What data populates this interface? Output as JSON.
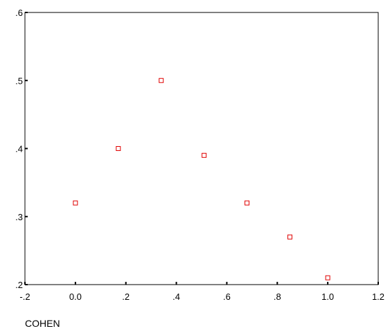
{
  "chart_data": {
    "type": "scatter",
    "title": "",
    "xlabel": "COHEN",
    "ylabel": "",
    "xlim": [
      -0.2,
      1.2
    ],
    "ylim": [
      0.2,
      0.6
    ],
    "x_ticks": [
      {
        "value": -0.2,
        "label": "-.2"
      },
      {
        "value": 0.0,
        "label": "0.0"
      },
      {
        "value": 0.2,
        "label": ".2"
      },
      {
        "value": 0.4,
        "label": ".4"
      },
      {
        "value": 0.6,
        "label": ".6"
      },
      {
        "value": 0.8,
        "label": ".8"
      },
      {
        "value": 1.0,
        "label": "1.0"
      },
      {
        "value": 1.2,
        "label": "1.2"
      }
    ],
    "y_ticks": [
      {
        "value": 0.2,
        "label": ".2"
      },
      {
        "value": 0.3,
        "label": ".3"
      },
      {
        "value": 0.4,
        "label": ".4"
      },
      {
        "value": 0.5,
        "label": ".5"
      },
      {
        "value": 0.6,
        "label": ".6"
      }
    ],
    "series": [
      {
        "points": [
          {
            "x": 0.0,
            "y": 0.32
          },
          {
            "x": 0.17,
            "y": 0.4
          },
          {
            "x": 0.34,
            "y": 0.5
          },
          {
            "x": 0.51,
            "y": 0.39
          },
          {
            "x": 0.68,
            "y": 0.32
          },
          {
            "x": 0.85,
            "y": 0.27
          },
          {
            "x": 1.0,
            "y": 0.21
          }
        ],
        "marker": "hollow-square",
        "color": "#e00000"
      }
    ],
    "grid": false,
    "legend": "none"
  }
}
